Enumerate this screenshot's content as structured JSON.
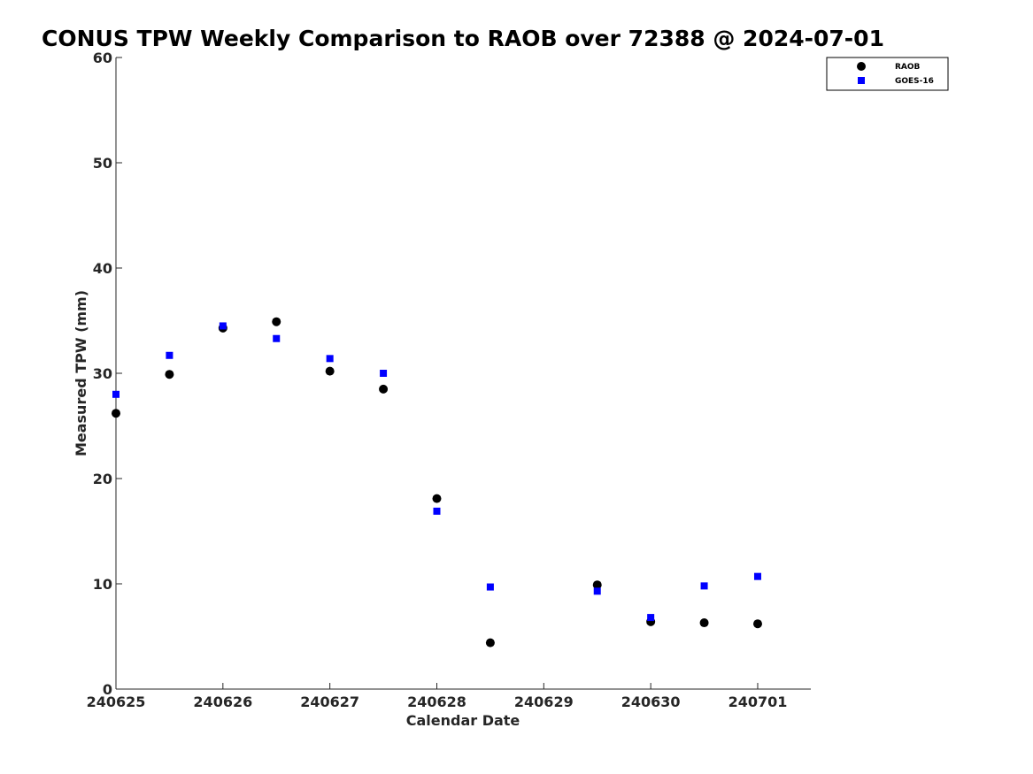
{
  "chart_data": {
    "type": "scatter",
    "title": "CONUS TPW Weekly Comparison to RAOB over 72388 @ 2024-07-01",
    "xlabel": "Calendar Date",
    "ylabel": "Measured TPW (mm)",
    "xlim": [
      "240625",
      "240701 12Z"
    ],
    "ylim": [
      0,
      60
    ],
    "x_ticks": [
      "240625",
      "240626",
      "240627",
      "240628",
      "240629",
      "240630",
      "240701"
    ],
    "y_ticks": [
      0,
      10,
      20,
      30,
      40,
      50,
      60
    ],
    "grid": false,
    "legend_position": "top-right",
    "series": [
      {
        "name": "RAOB",
        "marker": "circle",
        "color": "#000000",
        "points": [
          {
            "x": "240625 00Z",
            "y": 26.2
          },
          {
            "x": "240625 12Z",
            "y": 29.9
          },
          {
            "x": "240626 00Z",
            "y": 34.3
          },
          {
            "x": "240626 12Z",
            "y": 34.9
          },
          {
            "x": "240627 00Z",
            "y": 30.2
          },
          {
            "x": "240627 12Z",
            "y": 28.5
          },
          {
            "x": "240628 00Z",
            "y": 18.1
          },
          {
            "x": "240628 12Z",
            "y": 4.4
          },
          {
            "x": "240629 12Z",
            "y": 9.9
          },
          {
            "x": "240630 00Z",
            "y": 6.4
          },
          {
            "x": "240630 12Z",
            "y": 6.3
          },
          {
            "x": "240701 00Z",
            "y": 6.2
          }
        ]
      },
      {
        "name": "GOES-16",
        "marker": "square",
        "color": "#0000ff",
        "points": [
          {
            "x": "240625 00Z",
            "y": 28.0
          },
          {
            "x": "240625 12Z",
            "y": 31.7
          },
          {
            "x": "240626 00Z",
            "y": 34.5
          },
          {
            "x": "240626 12Z",
            "y": 33.3
          },
          {
            "x": "240627 00Z",
            "y": 31.4
          },
          {
            "x": "240627 12Z",
            "y": 30.0
          },
          {
            "x": "240628 00Z",
            "y": 16.9
          },
          {
            "x": "240628 12Z",
            "y": 9.7
          },
          {
            "x": "240629 12Z",
            "y": 9.3
          },
          {
            "x": "240630 00Z",
            "y": 6.8
          },
          {
            "x": "240630 12Z",
            "y": 9.8
          },
          {
            "x": "240701 00Z",
            "y": 10.7
          }
        ]
      }
    ]
  }
}
